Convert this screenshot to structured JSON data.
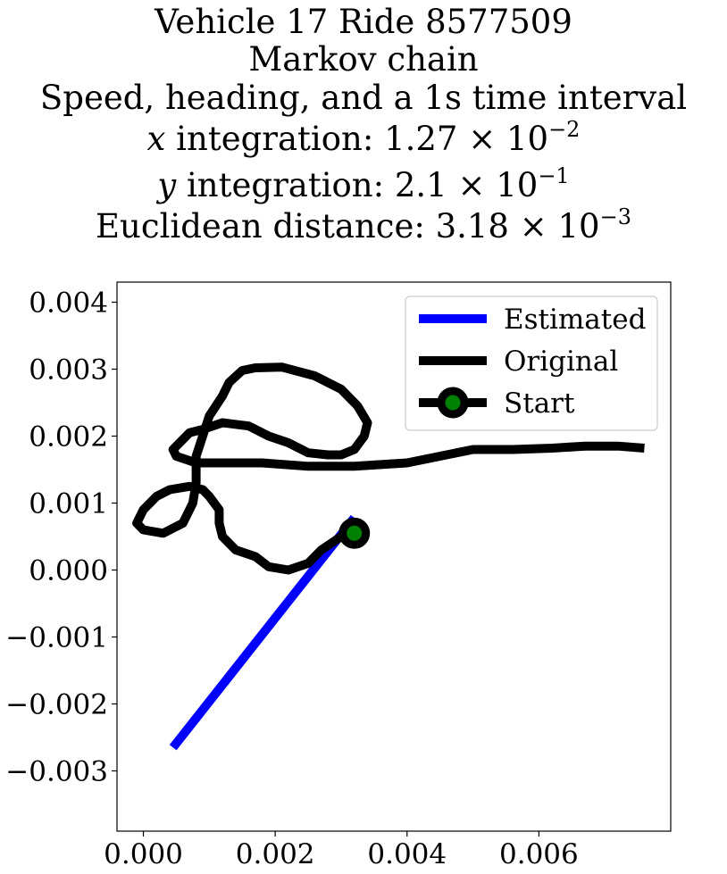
{
  "chart_data": {
    "type": "line",
    "title_lines": {
      "vehicle": "Vehicle 17 Ride 8577509",
      "method": "Markov chain",
      "subtitle": "Speed, heading, and a 1s time interval",
      "x_integration": {
        "var": "x",
        "label": "integration: 1.27 × 10",
        "exp": "−2"
      },
      "y_integration": {
        "var": "y",
        "label": "integration: 2.1 × 10",
        "exp": "−1"
      },
      "euclidean": {
        "label": "Euclidean distance: 3.18 × 10",
        "exp": "−3"
      }
    },
    "xlim": [
      -0.0004,
      0.008
    ],
    "ylim": [
      -0.0039,
      0.0043
    ],
    "x_ticks": [
      {
        "value": 0.0,
        "label": "0.000"
      },
      {
        "value": 0.002,
        "label": "0.002"
      },
      {
        "value": 0.004,
        "label": "0.004"
      },
      {
        "value": 0.006,
        "label": "0.006"
      }
    ],
    "y_ticks": [
      {
        "value": 0.004,
        "label": "0.004"
      },
      {
        "value": 0.003,
        "label": "0.003"
      },
      {
        "value": 0.002,
        "label": "0.002"
      },
      {
        "value": 0.001,
        "label": "0.001"
      },
      {
        "value": 0.0,
        "label": "0.000"
      },
      {
        "value": -0.001,
        "label": "−0.001"
      },
      {
        "value": -0.002,
        "label": "−0.002"
      },
      {
        "value": -0.003,
        "label": "−0.003"
      }
    ],
    "series": [
      {
        "name": "Estimated",
        "color": "#0000ff",
        "x": [
          0.00045,
          0.0032
        ],
        "y": [
          -0.00265,
          0.00078
        ]
      },
      {
        "name": "Original",
        "color": "#000000",
        "x": [
          0.0032,
          0.003,
          0.0027,
          0.0025,
          0.0022,
          0.0019,
          0.0017,
          0.0014,
          0.0012,
          0.00115,
          0.00115,
          0.001,
          0.0009,
          0.0007,
          0.0004,
          0.0002,
          0.0,
          -0.0001,
          0.0,
          0.0003,
          0.0006,
          0.00075,
          0.0008,
          0.0008,
          0.001,
          0.0012,
          0.0013,
          0.0015,
          0.0017,
          0.0021,
          0.0026,
          0.003,
          0.00325,
          0.0034,
          0.00335,
          0.0032,
          0.003,
          0.0028,
          0.0025,
          0.0022,
          0.0019,
          0.0016,
          0.0012,
          0.0009,
          0.0007,
          0.00055,
          0.00045,
          0.0005,
          0.0008,
          0.0012,
          0.0018,
          0.0025,
          0.0032,
          0.004,
          0.0045,
          0.005,
          0.0056,
          0.0062,
          0.0067,
          0.0072,
          0.0076
        ],
        "y": [
          0.00055,
          0.0005,
          0.0003,
          0.0001,
          0.0,
          5e-05,
          0.0002,
          0.0003,
          0.0005,
          0.0007,
          0.0009,
          0.0011,
          0.0012,
          0.00125,
          0.0012,
          0.0011,
          0.0009,
          0.0007,
          0.0006,
          0.00055,
          0.0007,
          0.001,
          0.0013,
          0.0017,
          0.0023,
          0.0026,
          0.0028,
          0.00298,
          0.00302,
          0.00303,
          0.0029,
          0.0027,
          0.00245,
          0.0022,
          0.002,
          0.0018,
          0.00172,
          0.00172,
          0.00175,
          0.0019,
          0.002,
          0.00215,
          0.0022,
          0.0021,
          0.00205,
          0.0019,
          0.0018,
          0.0017,
          0.0016,
          0.0016,
          0.0016,
          0.00155,
          0.00155,
          0.0016,
          0.0017,
          0.0018,
          0.0018,
          0.00182,
          0.00185,
          0.00185,
          0.00182
        ]
      }
    ],
    "start": {
      "name": "Start",
      "x": 0.0032,
      "y": 0.00055,
      "edge_color": "#000000",
      "face_color": "#008000"
    },
    "legend": {
      "position": "top-right",
      "entries": [
        {
          "label": "Estimated",
          "kind": "line",
          "color": "#0000ff"
        },
        {
          "label": "Original",
          "kind": "line",
          "color": "#000000"
        },
        {
          "label": "Start",
          "kind": "marker",
          "color": "#000000",
          "fill": "#008000"
        }
      ]
    }
  }
}
